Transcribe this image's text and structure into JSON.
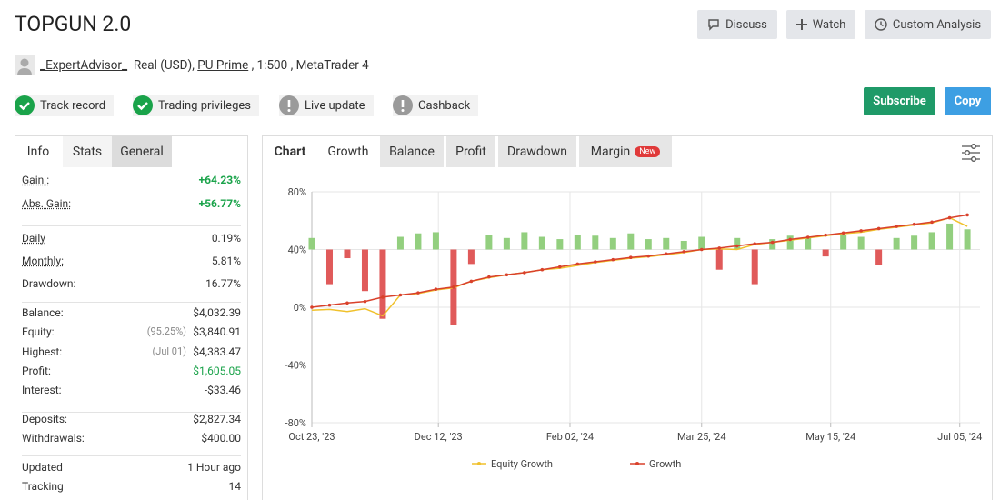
{
  "header": {
    "title": "TOPGUN 2.0",
    "buttons": [
      "Discuss",
      "Watch",
      "Custom Analysis"
    ]
  },
  "account": {
    "user": "_ExpertAdvisor_",
    "type": "Real (USD),",
    "broker": "PU Prime",
    "details": ", 1:500 , MetaTrader 4"
  },
  "badges": [
    "Track record",
    "Trading privileges",
    "Live update",
    "Cashback"
  ],
  "actions": [
    "Subscribe",
    "Copy"
  ],
  "left_tabs": [
    "Info",
    "Stats",
    "General"
  ],
  "stats": [
    [
      {
        "label": "Gain :",
        "value": "+64.23%"
      },
      {
        "label": "Abs. Gain:",
        "value": "+56.77%"
      }
    ],
    [
      {
        "label": "Daily",
        "value": "0.19%"
      },
      {
        "label": "Monthly:",
        "value": "5.81%"
      },
      {
        "label": "Drawdown:",
        "value": "16.77%"
      }
    ],
    [
      {
        "label": "Balance:",
        "value": "$4,032.39"
      },
      {
        "label": "Equity:",
        "note": "(95.25%)",
        "value": "$3,840.91"
      },
      {
        "label": "Highest:",
        "note": "(Jul 01)",
        "value": "$4,383.47"
      },
      {
        "label": "Profit:",
        "value": "$1,605.05"
      },
      {
        "label": "Interest:",
        "value": "-$33.46"
      }
    ],
    [
      {
        "label": "Deposits:",
        "value": "$2,827.34"
      },
      {
        "label": "Withdrawals:",
        "value": "$400.00"
      }
    ],
    [
      {
        "label": "Updated",
        "value": "1 Hour ago"
      },
      {
        "label": "Tracking",
        "value": "14"
      }
    ]
  ],
  "chart_tabs": [
    "Chart",
    "Growth",
    "Balance",
    "Profit",
    "Drawdown",
    "Margin"
  ],
  "new_badge": "New",
  "chart_data": {
    "type": "line",
    "x": [
      "2023-10-23",
      "2023-10-30",
      "2023-11-06",
      "2023-11-13",
      "2023-11-20",
      "2023-11-27",
      "2023-12-04",
      "2023-12-11",
      "2023-12-18",
      "2023-12-25",
      "2024-01-01",
      "2024-01-08",
      "2024-01-15",
      "2024-01-22",
      "2024-01-29",
      "2024-02-05",
      "2024-02-12",
      "2024-02-19",
      "2024-02-26",
      "2024-03-04",
      "2024-03-11",
      "2024-03-18",
      "2024-03-25",
      "2024-04-01",
      "2024-04-08",
      "2024-04-15",
      "2024-04-22",
      "2024-04-29",
      "2024-05-06",
      "2024-05-13",
      "2024-05-20",
      "2024-05-27",
      "2024-06-03",
      "2024-06-10",
      "2024-06-17",
      "2024-06-24",
      "2024-07-01",
      "2024-07-08"
    ],
    "xlim": [
      "2023-10-23",
      "2024-07-13"
    ],
    "xticks": [
      {
        "value": "2023-10-23",
        "label": "Oct 23, '23"
      },
      {
        "value": "2023-12-12",
        "label": "Dec 12, '23"
      },
      {
        "value": "2024-02-02",
        "label": "Feb 02, '24"
      },
      {
        "value": "2024-03-25",
        "label": "Mar 25, '24"
      },
      {
        "value": "2024-05-15",
        "label": "May 15, '24"
      },
      {
        "value": "2024-07-05",
        "label": "Jul 05, '24"
      }
    ],
    "ylim": [
      -80,
      80
    ],
    "yticks": [
      {
        "value": -80,
        "label": "-80%"
      },
      {
        "value": -40,
        "label": "-40%"
      },
      {
        "value": 0,
        "label": "0%"
      },
      {
        "value": 40,
        "label": "40%"
      },
      {
        "value": 80,
        "label": "80%"
      }
    ],
    "y2lim": [
      -3,
      1
    ],
    "grid": true,
    "series": [
      {
        "name": "Equity Growth",
        "color": "#f0c12c",
        "values": [
          -2,
          -1.5,
          -3,
          -1,
          -6,
          8.5,
          9.5,
          12,
          13.5,
          18,
          20.5,
          22.5,
          24,
          26,
          27,
          29,
          31,
          32.5,
          34,
          35,
          36.5,
          38,
          40,
          40.5,
          40,
          43.5,
          45,
          46.5,
          48,
          49.5,
          51,
          52,
          54,
          55.5,
          57,
          58.5,
          62,
          56
        ]
      },
      {
        "name": "Growth",
        "color": "#d9412b",
        "values": [
          0,
          1.5,
          3,
          4,
          7,
          8.5,
          10,
          12.5,
          14,
          18,
          21,
          22.5,
          24,
          26,
          28,
          30,
          31.5,
          33,
          34.5,
          35.5,
          37,
          38.5,
          40,
          41,
          42.5,
          44,
          45,
          47,
          48.5,
          50,
          51.5,
          53,
          54.5,
          56,
          57.5,
          59,
          62,
          64
        ]
      },
      {
        "type": "bar",
        "axis": "y2",
        "color": "#93cf7f",
        "negative_color": "#e05a5a",
        "values": [
          0.2,
          -0.6,
          -0.15,
          -0.72,
          -1.2,
          0.22,
          0.28,
          0.3,
          -1.3,
          -0.25,
          0.25,
          0.2,
          0.3,
          0.22,
          0.18,
          0.26,
          0.24,
          0.2,
          0.28,
          0.18,
          0.2,
          0.15,
          0.22,
          -0.35,
          0.2,
          -0.6,
          0.18,
          0.24,
          0.2,
          -0.12,
          0.26,
          0.22,
          -0.27,
          0.2,
          0.24,
          0.3,
          0.45,
          0.35
        ]
      }
    ]
  }
}
